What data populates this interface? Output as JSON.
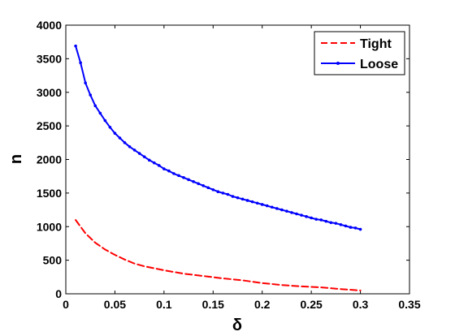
{
  "chart_data": {
    "type": "line",
    "title": "",
    "xlabel": "δ",
    "ylabel": "n",
    "xlim": [
      0,
      0.35
    ],
    "ylim": [
      0,
      4000
    ],
    "xticks": [
      "0",
      "0.05",
      "0.1",
      "0.15",
      "0.2",
      "0.25",
      "0.3",
      "0.35"
    ],
    "yticks": [
      "0",
      "500",
      "1000",
      "1500",
      "2000",
      "2500",
      "3000",
      "3500",
      "4000"
    ],
    "grid": false,
    "legend_position": "top-right",
    "series": [
      {
        "name": "Tight",
        "color": "#ff0000",
        "style": "dashed",
        "x": [
          0.01,
          0.015,
          0.02,
          0.03,
          0.04,
          0.05,
          0.06,
          0.07,
          0.08,
          0.1,
          0.12,
          0.14,
          0.16,
          0.18,
          0.2,
          0.22,
          0.24,
          0.26,
          0.28,
          0.3
        ],
        "values": [
          1100,
          1000,
          900,
          760,
          660,
          580,
          510,
          450,
          410,
          350,
          300,
          265,
          230,
          200,
          160,
          130,
          110,
          95,
          70,
          50
        ]
      },
      {
        "name": "Loose",
        "color": "#0000ff",
        "style": "solid-markers",
        "x": [
          0.01,
          0.015,
          0.02,
          0.025,
          0.03,
          0.035,
          0.04,
          0.045,
          0.05,
          0.055,
          0.06,
          0.065,
          0.07,
          0.075,
          0.08,
          0.085,
          0.09,
          0.095,
          0.1,
          0.105,
          0.11,
          0.115,
          0.12,
          0.125,
          0.13,
          0.135,
          0.14,
          0.145,
          0.15,
          0.155,
          0.16,
          0.165,
          0.17,
          0.175,
          0.18,
          0.185,
          0.19,
          0.195,
          0.2,
          0.205,
          0.21,
          0.215,
          0.22,
          0.225,
          0.23,
          0.235,
          0.24,
          0.245,
          0.25,
          0.255,
          0.26,
          0.265,
          0.27,
          0.275,
          0.28,
          0.285,
          0.29,
          0.295,
          0.3
        ],
        "values": [
          3690,
          3440,
          3140,
          2960,
          2800,
          2690,
          2580,
          2480,
          2390,
          2320,
          2250,
          2190,
          2140,
          2090,
          2040,
          1990,
          1950,
          1910,
          1860,
          1830,
          1790,
          1760,
          1730,
          1700,
          1670,
          1640,
          1610,
          1580,
          1550,
          1520,
          1500,
          1480,
          1450,
          1430,
          1410,
          1390,
          1370,
          1350,
          1330,
          1310,
          1290,
          1270,
          1250,
          1230,
          1210,
          1190,
          1170,
          1150,
          1130,
          1110,
          1100,
          1080,
          1060,
          1050,
          1030,
          1010,
          990,
          980,
          960
        ]
      }
    ]
  }
}
